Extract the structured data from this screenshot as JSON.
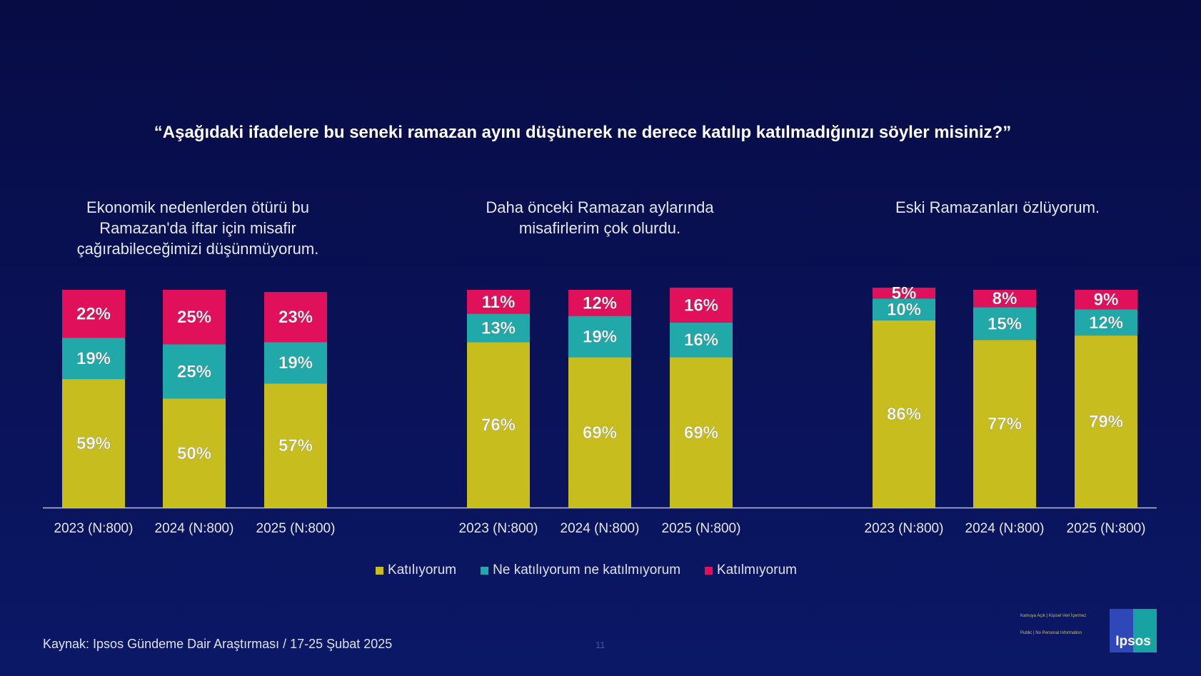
{
  "title": "“Aşağıdaki ifadelere bu seneki ramazan ayını düşünerek ne derece katılıp katılmadığınızı söyler misiniz?”",
  "colors": {
    "background": "#0a1258",
    "agree": "#c8bd1e",
    "neutral": "#21a9a9",
    "disagree": "#e0105a"
  },
  "chart_data": {
    "type": "bar",
    "stacked": true,
    "grid": false,
    "legend_position": "bottom",
    "ylim": [
      0,
      100
    ],
    "series_names": [
      "Katılıyorum",
      "Ne katılıyorum ne katılmıyorum",
      "Katılmıyorum"
    ],
    "groups": [
      {
        "title": "Ekonomik nedenlerden ötürü bu Ramazan'da iftar için misafir çağırabileceğimizi düşünmüyorum.",
        "categories": [
          "2023 (N:800)",
          "2024 (N:800)",
          "2025 (N:800)"
        ],
        "series": [
          {
            "name": "Katılıyorum",
            "values": [
              59,
              50,
              57
            ]
          },
          {
            "name": "Ne katılıyorum ne katılmıyorum",
            "values": [
              19,
              25,
              19
            ]
          },
          {
            "name": "Katılmıyorum",
            "values": [
              22,
              25,
              23
            ]
          }
        ]
      },
      {
        "title": "Daha önceki Ramazan aylarında misafirlerim çok olurdu.",
        "categories": [
          "2023 (N:800)",
          "2024 (N:800)",
          "2025 (N:800)"
        ],
        "series": [
          {
            "name": "Katılıyorum",
            "values": [
              76,
              69,
              69
            ]
          },
          {
            "name": "Ne katılıyorum ne katılmıyorum",
            "values": [
              13,
              19,
              16
            ]
          },
          {
            "name": "Katılmıyorum",
            "values": [
              11,
              12,
              16
            ]
          }
        ]
      },
      {
        "title": "Eski Ramazanları özlüyorum.",
        "categories": [
          "2023 (N:800)",
          "2024 (N:800)",
          "2025 (N:800)"
        ],
        "series": [
          {
            "name": "Katılıyorum",
            "values": [
              86,
              77,
              79
            ]
          },
          {
            "name": "Ne katılıyorum ne katılmıyorum",
            "values": [
              10,
              15,
              12
            ]
          },
          {
            "name": "Katılmıyorum",
            "values": [
              5,
              8,
              9
            ]
          }
        ]
      }
    ]
  },
  "legend": [
    {
      "label": "Katılıyorum"
    },
    {
      "label": "Ne katılıyorum ne katılmıyorum"
    },
    {
      "label": "Katılmıyorum"
    }
  ],
  "footer": {
    "source": "Kaynak: Ipsos Gündeme Dair Araştırması / 17-25 Şubat 2025",
    "page": "11",
    "classification_1": "Kamuya Açık | Kişisel Veri İçermez",
    "classification_2": "Public | No Personal Information",
    "logo": "Ipsos"
  }
}
